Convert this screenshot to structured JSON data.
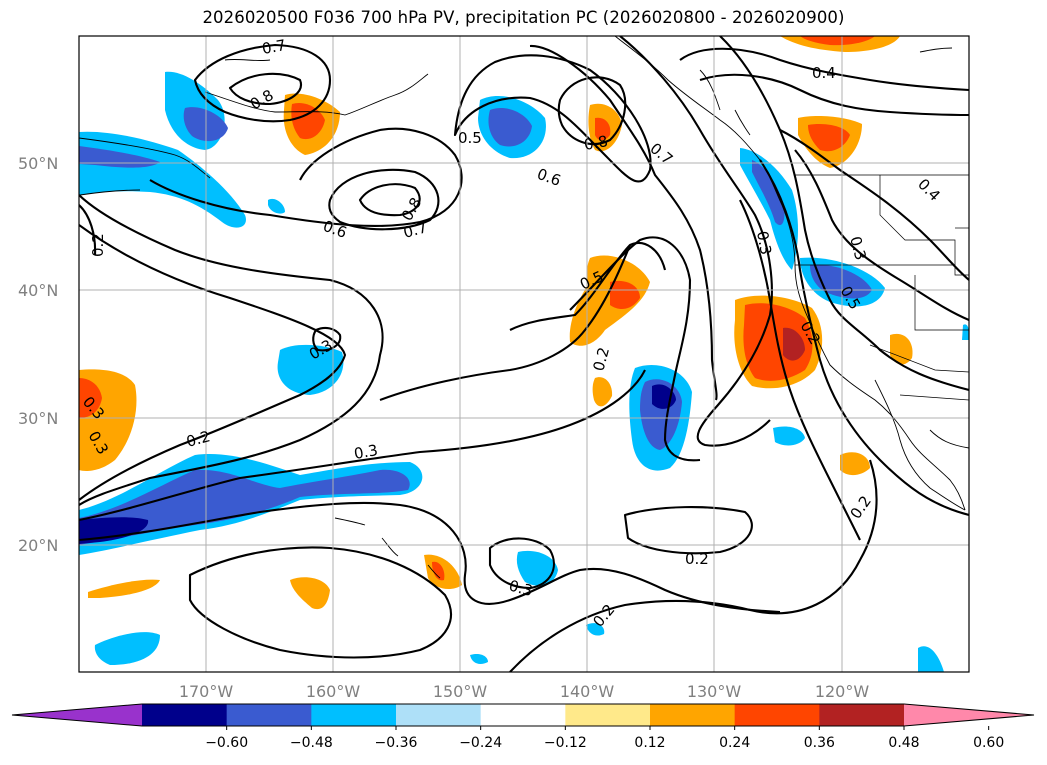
{
  "title": "2026020500 F036 700 hPa PV, precipitation PC (2026020800 - 2026020900)",
  "map": {
    "region": "North Pacific / western North America",
    "lon_range": [
      -180,
      -110
    ],
    "lat_range": [
      10,
      60
    ],
    "lat_ticks": [
      "20°N",
      "30°N",
      "40°N",
      "50°N"
    ],
    "lon_ticks": [
      "170°W",
      "160°W",
      "150°W",
      "140°W",
      "130°W",
      "120°W"
    ],
    "gridlines": true,
    "contour_variable": "700 hPa PV",
    "contour_labels": [
      "0.7",
      "0.8",
      "0.5",
      "0.8",
      "0.7",
      "0.4",
      "0.6",
      "0.8",
      "0.6",
      "0.7",
      "0.4",
      "0.2",
      "0.5",
      "0.3",
      "0.3",
      "0.5",
      "0.2",
      "0.3",
      "0.2",
      "0.3",
      "0.2",
      "0.3",
      "0.2",
      "0.2",
      "0.3",
      "0.2",
      "0.3"
    ],
    "shaded_variable": "precipitation PC"
  },
  "colorbar": {
    "tick_labels": [
      "−0.60",
      "−0.48",
      "−0.36",
      "−0.24",
      "−0.12",
      "0.12",
      "0.24",
      "0.36",
      "0.48",
      "0.60"
    ],
    "colors": [
      "#9932cc",
      "#00008b",
      "#3a5bd0",
      "#00bfff",
      "#aee0f8",
      "#ffffff",
      "#ffe98a",
      "#ffa500",
      "#ff4500",
      "#b22222",
      "#ff88aa"
    ],
    "extend": "both"
  }
}
